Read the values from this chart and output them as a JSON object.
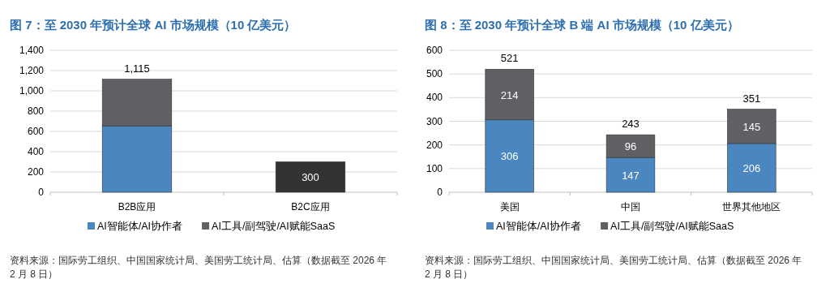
{
  "chart_data": [
    {
      "type": "bar",
      "title": "图 7：至 2030 年预计全球 AI 市场规模（10 亿美元）",
      "categories": [
        "B2B应用",
        "B2C应用"
      ],
      "stacked": true,
      "ylim": [
        0,
        1400
      ],
      "yticks": [
        0,
        {
          "value": 200,
          "label": "200"
        },
        {
          "value": 400,
          "label": "400"
        },
        {
          "value": 600,
          "label": "600"
        },
        {
          "value": 800,
          "label": "800"
        },
        {
          "value": 1000,
          "label": "1,000"
        },
        {
          "value": 1200,
          "label": "1,200"
        },
        {
          "value": 1400,
          "label": "1,400"
        }
      ],
      "grid": "y",
      "legend": "bottom",
      "series": [
        {
          "name": "AI智能体/AI协作者",
          "color": "#4a86c0",
          "values": [
            655,
            null
          ]
        },
        {
          "name": "AI工具/副驾驶/AI赋能SaaS",
          "color": "#5f6064",
          "colors": [
            "#5f6064",
            "#333333"
          ],
          "values": [
            460,
            300
          ],
          "value_labels": [
            null,
            "300"
          ]
        }
      ],
      "totals": [
        "1,115",
        null
      ],
      "annotations": [
        "资料来源：国际劳工组织、中国国家统计局、美国劳工统计局、估算（数据截至 2026 年 2 月 8 日）"
      ]
    },
    {
      "type": "bar",
      "title": "图 8：至 2030 年预计全球 B 端 AI 市场规模（10 亿美元）",
      "categories": [
        "美国",
        "中国",
        "世界其他地区"
      ],
      "stacked": true,
      "ylim": [
        0,
        600
      ],
      "yticks": [
        0,
        100,
        200,
        300,
        400,
        500,
        600
      ],
      "grid": "y",
      "legend": "bottom",
      "data_labels": true,
      "series": [
        {
          "name": "AI智能体/AI协作者",
          "color": "#4a86c0",
          "values": [
            306,
            147,
            206
          ]
        },
        {
          "name": "AI工具/副驾驶/AI赋能SaaS",
          "color": "#5f6064",
          "values": [
            214,
            96,
            145
          ]
        }
      ],
      "totals": [
        "521",
        "243",
        "351"
      ],
      "annotations": [
        "资料来源：国际劳工组织、中国国家统计局、美国劳工统计局、估算（数据截至 2026 年 2 月 8 日）"
      ]
    }
  ]
}
